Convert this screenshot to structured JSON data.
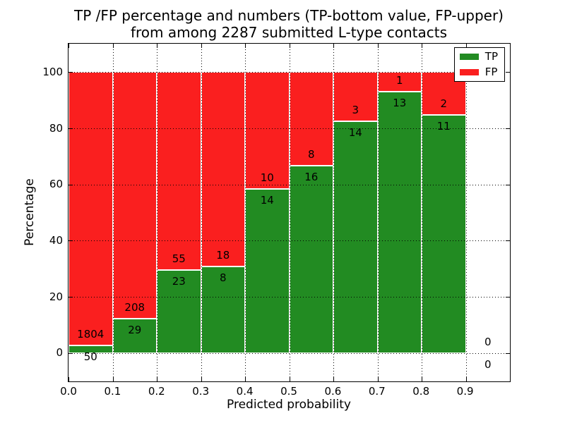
{
  "chart_data": {
    "type": "bar",
    "stacked": true,
    "title_line1": "TP /FP percentage and numbers (TP-bottom value, FP-upper)",
    "title_line2": "from among 2287 submitted L-type contacts",
    "xlabel": "Predicted probability",
    "ylabel": "Percentage",
    "xlim": [
      0.0,
      1.0
    ],
    "ylim": [
      -10,
      110
    ],
    "xtick_labels": [
      "0.0",
      "0.1",
      "0.2",
      "0.3",
      "0.4",
      "0.5",
      "0.6",
      "0.7",
      "0.8",
      "0.9"
    ],
    "ytick_values": [
      0,
      20,
      40,
      60,
      80,
      100
    ],
    "grid_style": "dotted",
    "bin_width": 0.1,
    "total_contacts": 2287,
    "bins": [
      {
        "start": 0.0,
        "tp": 50,
        "fp": 1804
      },
      {
        "start": 0.1,
        "tp": 29,
        "fp": 208
      },
      {
        "start": 0.2,
        "tp": 23,
        "fp": 55
      },
      {
        "start": 0.3,
        "tp": 8,
        "fp": 18
      },
      {
        "start": 0.4,
        "tp": 14,
        "fp": 10
      },
      {
        "start": 0.5,
        "tp": 16,
        "fp": 8
      },
      {
        "start": 0.6,
        "tp": 14,
        "fp": 3
      },
      {
        "start": 0.7,
        "tp": 13,
        "fp": 1
      },
      {
        "start": 0.8,
        "tp": 11,
        "fp": 2
      },
      {
        "start": 0.9,
        "tp": 0,
        "fp": 0
      }
    ],
    "legend": {
      "position": "upper right",
      "entries": [
        {
          "label": "TP",
          "color": "#228b22"
        },
        {
          "label": "FP",
          "color": "#fa1f1f"
        }
      ]
    },
    "colors": {
      "tp": "#228b22",
      "fp": "#fa1f1f",
      "grid": "#000000",
      "frame": "#000000",
      "background": "#ffffff"
    },
    "label_offset_pct": 4
  }
}
